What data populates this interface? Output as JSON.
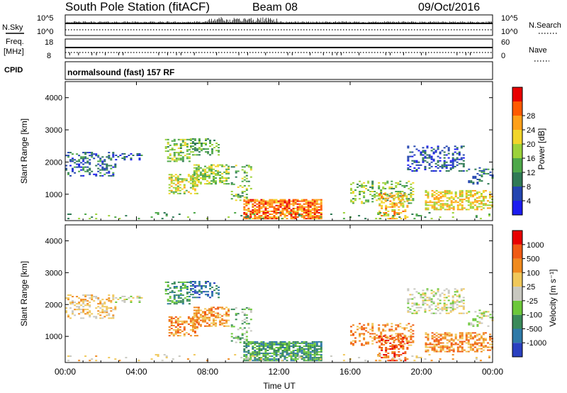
{
  "chart_data": [
    {
      "type": "header",
      "title": "South Pole Station (fitACF)",
      "beam": "Beam 08",
      "date": "09/Oct/2016",
      "cpid": "CPID",
      "program": "normalsound (fast) 157 RF"
    },
    {
      "type": "line",
      "name": "noise-panel",
      "left_label": "N.Sky",
      "right_label": "N.Search",
      "left_ticks": [
        "10^5",
        "10^0"
      ],
      "right_ticks": [
        "10^5",
        "10^0"
      ]
    },
    {
      "type": "line",
      "name": "frequency-panel",
      "left_label_1": "Freq.",
      "left_label_2": "[MHz]",
      "right_label": "Nave",
      "left_ticks": [
        "18",
        "8"
      ],
      "right_ticks": [
        "60",
        "0"
      ]
    },
    {
      "type": "heatmap",
      "name": "power",
      "ylabel": "Slant Range [km]",
      "ylim": [
        180,
        4500
      ],
      "y_ticks": [
        1000,
        2000,
        3000,
        4000
      ],
      "colorbar_label": "Power [dB]",
      "colorbar_ticks": [
        "4",
        "8",
        "12",
        "16",
        "20",
        "24",
        "28"
      ],
      "colorbar_colors": [
        "#1c1cf0",
        "#2345b0",
        "#2f7a55",
        "#4ea84a",
        "#9cd23a",
        "#f2d52a",
        "#ffa019",
        "#ff5a00",
        "#e80000"
      ]
    },
    {
      "type": "heatmap",
      "name": "velocity",
      "ylabel": "Slant Range [km]",
      "ylim": [
        180,
        4500
      ],
      "y_ticks": [
        1000,
        2000,
        3000,
        4000
      ],
      "colorbar_label": "Velocity [m s⁻¹]",
      "colorbar_ticks": [
        "1000",
        "500",
        "100",
        "25",
        "-25",
        "-100",
        "-500",
        "-1000"
      ],
      "colorbar_colors": [
        "#2a40c0",
        "#2f7aa8",
        "#3a8a5a",
        "#6cc83a",
        "#c8c8c0",
        "#f0c85a",
        "#f08a1e",
        "#f05a14",
        "#e80000"
      ]
    },
    {
      "type": "axis",
      "xlabel": "Time UT",
      "x_ticks": [
        "00:00",
        "04:00",
        "08:00",
        "12:00",
        "16:00",
        "20:00",
        "00:00"
      ]
    }
  ]
}
